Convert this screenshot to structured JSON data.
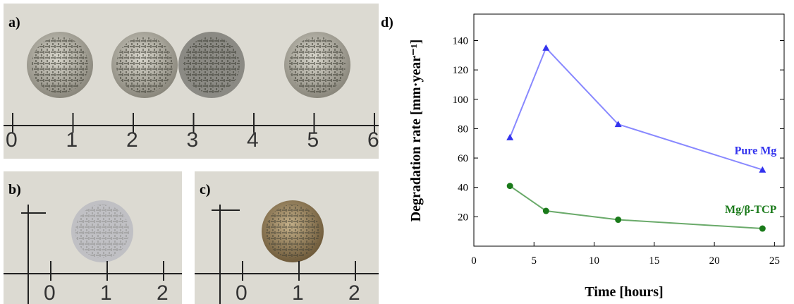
{
  "photos": {
    "a": {
      "label": "a)",
      "ruler": [
        "0",
        "1",
        "2",
        "3",
        "4",
        "5",
        "6"
      ]
    },
    "b": {
      "label": "b)",
      "ruler": [
        "0",
        "1",
        "2"
      ]
    },
    "c": {
      "label": "c)",
      "ruler": [
        "0",
        "1",
        "2"
      ]
    }
  },
  "chart_data": {
    "type": "line",
    "panel_label": "d)",
    "x_label": "Time [hours]",
    "y_label": "Degradation rate [mm·year⁻¹]",
    "xlim": [
      0,
      25.8
    ],
    "xticks": [
      0,
      5,
      10,
      15,
      20,
      25
    ],
    "ylim": [
      0,
      158
    ],
    "yticks": [
      20,
      40,
      60,
      80,
      100,
      120,
      140
    ],
    "series": [
      {
        "name": "Pure Mg",
        "color": "#3333ee",
        "light": "#8888ff",
        "marker": "triangle",
        "x": [
          3,
          6,
          12,
          24
        ],
        "values": [
          74,
          135,
          83,
          52
        ]
      },
      {
        "name": "Mg/β-TCP",
        "color": "#1a7a1a",
        "light": "#6aaa6a",
        "marker": "circle",
        "x": [
          3,
          6,
          12,
          24
        ],
        "values": [
          41,
          24,
          18,
          12
        ]
      }
    ]
  }
}
